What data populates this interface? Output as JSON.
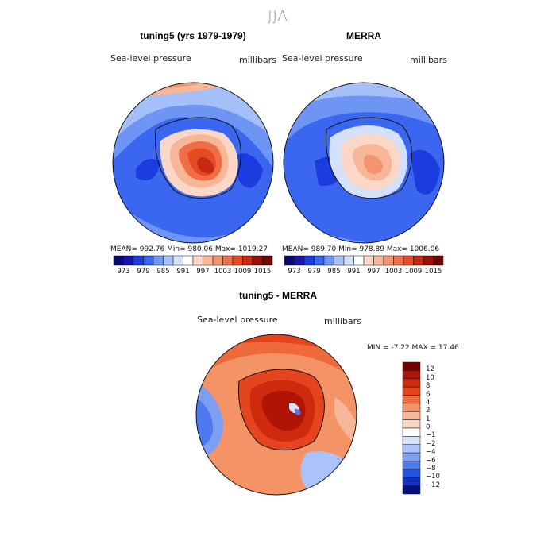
{
  "figure": {
    "season": "JJA",
    "variable": "Sea-level pressure",
    "units": "millibars"
  },
  "panels": [
    {
      "title": "tuning5 (yrs 1979-1979)",
      "variable": "Sea-level pressure",
      "units": "millibars",
      "stats": "MEAN= 992.76   Min= 980.06   Max= 1019.27"
    },
    {
      "title": "MERRA",
      "variable": "Sea-level pressure",
      "units": "millibars",
      "stats": "MEAN= 989.70   Min= 978.89   Max= 1006.06"
    }
  ],
  "diff_panel": {
    "title": "tuning5 - MERRA",
    "variable": "Sea-level pressure",
    "units": "millibars",
    "range_text": "MIN =   -7.22  MAX =   17.46"
  },
  "colorbar_top": {
    "labels": [
      "973",
      "979",
      "985",
      "991",
      "997",
      "1003",
      "1009",
      "1015"
    ],
    "colors": [
      "#0a0a70",
      "#1515b0",
      "#1c3ce0",
      "#3a66f0",
      "#6e94f4",
      "#a5bff8",
      "#d4e1fb",
      "#ffffff",
      "#fbd7c8",
      "#f8b699",
      "#f39370",
      "#ef6e48",
      "#e54a25",
      "#c52a12",
      "#9a1207",
      "#700500"
    ]
  },
  "colorbar_diff": {
    "labels": [
      "12",
      "10",
      "8",
      "6",
      "4",
      "2",
      "1",
      "0",
      "−1",
      "−2",
      "−4",
      "−6",
      "−8",
      "−10",
      "−12"
    ],
    "colors": [
      "#7a0000",
      "#b01405",
      "#d02a0e",
      "#e4451f",
      "#ee6a3c",
      "#f49466",
      "#f8b79a",
      "#fbd8c6",
      "#ffffff",
      "#d6e2fb",
      "#abc3f8",
      "#7d9ff3",
      "#4f79ee",
      "#2453e4",
      "#1233b8",
      "#06107a"
    ]
  },
  "chart_data": {
    "type": "heatmap",
    "title": "JJA Sea-level pressure (millibars)",
    "panels": [
      "tuning5 (yrs 1979-1979)",
      "MERRA",
      "tuning5 - MERRA"
    ],
    "summary": [
      {
        "name": "tuning5 (yrs 1979-1979)",
        "mean": 992.76,
        "min": 980.06,
        "max": 1019.27
      },
      {
        "name": "MERRA",
        "mean": 989.7,
        "min": 978.89,
        "max": 1006.06
      },
      {
        "name": "tuning5 - MERRA",
        "min": -7.22,
        "max": 17.46
      }
    ],
    "contour_levels_top": [
      973,
      979,
      985,
      991,
      997,
      1003,
      1009,
      1015
    ],
    "contour_levels_diff": [
      -12,
      -10,
      -8,
      -6,
      -4,
      -2,
      -1,
      0,
      1,
      2,
      4,
      6,
      8,
      10,
      12
    ]
  }
}
